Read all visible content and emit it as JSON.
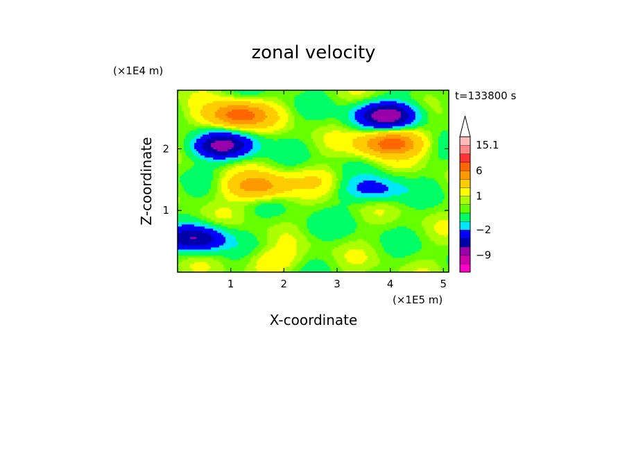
{
  "chart_data": {
    "type": "heatmap",
    "title": "zonal velocity",
    "xlabel": "X-coordinate",
    "ylabel": "Z-coordinate",
    "x_scale_label": "(×1E5 m)",
    "y_scale_label": "(×1E4 m)",
    "time_label": "t=133800 s",
    "xlim": [
      0,
      5.1
    ],
    "ylim": [
      0,
      2.95
    ],
    "x_ticks": [
      1,
      2,
      3,
      4,
      5
    ],
    "y_ticks": [
      1,
      2
    ],
    "x_tick_labels": [
      "1",
      "2",
      "3",
      "4",
      "5"
    ],
    "y_tick_labels": [
      "1",
      "2"
    ],
    "colorbar": {
      "labels": [
        {
          "value": 15.1,
          "text": "15.1"
        },
        {
          "value": 6,
          "text": "6"
        },
        {
          "value": 1,
          "text": "1"
        },
        {
          "value": -2,
          "text": "−2"
        },
        {
          "value": -9,
          "text": "−9"
        }
      ],
      "levels": [
        -20,
        -12,
        -9,
        -6,
        -4,
        -2,
        -1,
        0,
        0.5,
        1,
        2,
        4,
        6,
        9,
        12,
        15.1,
        20
      ],
      "colors": [
        "#ff00cc",
        "#cc00aa",
        "#9900aa",
        "#0000aa",
        "#0000ff",
        "#00e6ff",
        "#00ff66",
        "#66ff00",
        "#aaff00",
        "#ffff00",
        "#ffcc00",
        "#ff9900",
        "#ff6600",
        "#ff3333",
        "#ff8888",
        "#ffbbbb"
      ],
      "extend_top": true
    },
    "features": [
      {
        "x": 1.15,
        "z": 2.55,
        "value": 7
      },
      {
        "x": 3.95,
        "z": 2.55,
        "value": -8
      },
      {
        "x": 0.85,
        "z": 2.05,
        "value": -7
      },
      {
        "x": 4.0,
        "z": 2.1,
        "value": 7
      },
      {
        "x": 1.5,
        "z": 1.4,
        "value": 5
      },
      {
        "x": 0.35,
        "z": 0.55,
        "value": -6
      },
      {
        "x": 3.7,
        "z": 1.35,
        "value": -3
      },
      {
        "x": 2.6,
        "z": 1.5,
        "value": 1.2
      },
      {
        "x": 2.6,
        "z": 0.7,
        "value": -0.5
      },
      {
        "x": 1.8,
        "z": 0.2,
        "value": 1.5
      }
    ]
  }
}
